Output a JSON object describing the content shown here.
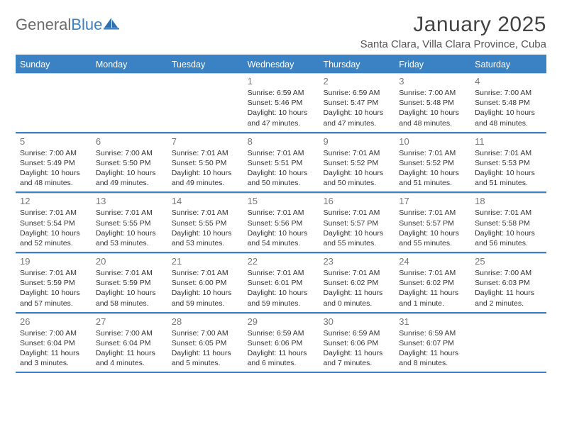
{
  "brand": {
    "text1": "General",
    "text2": "Blue",
    "icon_color": "#2f6fb0"
  },
  "title": "January 2025",
  "subtitle": "Santa Clara, Villa Clara Province, Cuba",
  "colors": {
    "header_bar": "#3b82c4",
    "header_text": "#ffffff",
    "rule": "#3b82c4",
    "cell_border": "#cfcfcf",
    "daynum": "#777777",
    "body_text": "#333333",
    "background": "#ffffff"
  },
  "dow": [
    "Sunday",
    "Monday",
    "Tuesday",
    "Wednesday",
    "Thursday",
    "Friday",
    "Saturday"
  ],
  "weeks": [
    [
      null,
      null,
      null,
      {
        "n": "1",
        "sunrise": "6:59 AM",
        "sunset": "5:46 PM",
        "dl1": "Daylight: 10 hours",
        "dl2": "and 47 minutes."
      },
      {
        "n": "2",
        "sunrise": "6:59 AM",
        "sunset": "5:47 PM",
        "dl1": "Daylight: 10 hours",
        "dl2": "and 47 minutes."
      },
      {
        "n": "3",
        "sunrise": "7:00 AM",
        "sunset": "5:48 PM",
        "dl1": "Daylight: 10 hours",
        "dl2": "and 48 minutes."
      },
      {
        "n": "4",
        "sunrise": "7:00 AM",
        "sunset": "5:48 PM",
        "dl1": "Daylight: 10 hours",
        "dl2": "and 48 minutes."
      }
    ],
    [
      {
        "n": "5",
        "sunrise": "7:00 AM",
        "sunset": "5:49 PM",
        "dl1": "Daylight: 10 hours",
        "dl2": "and 48 minutes."
      },
      {
        "n": "6",
        "sunrise": "7:00 AM",
        "sunset": "5:50 PM",
        "dl1": "Daylight: 10 hours",
        "dl2": "and 49 minutes."
      },
      {
        "n": "7",
        "sunrise": "7:01 AM",
        "sunset": "5:50 PM",
        "dl1": "Daylight: 10 hours",
        "dl2": "and 49 minutes."
      },
      {
        "n": "8",
        "sunrise": "7:01 AM",
        "sunset": "5:51 PM",
        "dl1": "Daylight: 10 hours",
        "dl2": "and 50 minutes."
      },
      {
        "n": "9",
        "sunrise": "7:01 AM",
        "sunset": "5:52 PM",
        "dl1": "Daylight: 10 hours",
        "dl2": "and 50 minutes."
      },
      {
        "n": "10",
        "sunrise": "7:01 AM",
        "sunset": "5:52 PM",
        "dl1": "Daylight: 10 hours",
        "dl2": "and 51 minutes."
      },
      {
        "n": "11",
        "sunrise": "7:01 AM",
        "sunset": "5:53 PM",
        "dl1": "Daylight: 10 hours",
        "dl2": "and 51 minutes."
      }
    ],
    [
      {
        "n": "12",
        "sunrise": "7:01 AM",
        "sunset": "5:54 PM",
        "dl1": "Daylight: 10 hours",
        "dl2": "and 52 minutes."
      },
      {
        "n": "13",
        "sunrise": "7:01 AM",
        "sunset": "5:55 PM",
        "dl1": "Daylight: 10 hours",
        "dl2": "and 53 minutes."
      },
      {
        "n": "14",
        "sunrise": "7:01 AM",
        "sunset": "5:55 PM",
        "dl1": "Daylight: 10 hours",
        "dl2": "and 53 minutes."
      },
      {
        "n": "15",
        "sunrise": "7:01 AM",
        "sunset": "5:56 PM",
        "dl1": "Daylight: 10 hours",
        "dl2": "and 54 minutes."
      },
      {
        "n": "16",
        "sunrise": "7:01 AM",
        "sunset": "5:57 PM",
        "dl1": "Daylight: 10 hours",
        "dl2": "and 55 minutes."
      },
      {
        "n": "17",
        "sunrise": "7:01 AM",
        "sunset": "5:57 PM",
        "dl1": "Daylight: 10 hours",
        "dl2": "and 55 minutes."
      },
      {
        "n": "18",
        "sunrise": "7:01 AM",
        "sunset": "5:58 PM",
        "dl1": "Daylight: 10 hours",
        "dl2": "and 56 minutes."
      }
    ],
    [
      {
        "n": "19",
        "sunrise": "7:01 AM",
        "sunset": "5:59 PM",
        "dl1": "Daylight: 10 hours",
        "dl2": "and 57 minutes."
      },
      {
        "n": "20",
        "sunrise": "7:01 AM",
        "sunset": "5:59 PM",
        "dl1": "Daylight: 10 hours",
        "dl2": "and 58 minutes."
      },
      {
        "n": "21",
        "sunrise": "7:01 AM",
        "sunset": "6:00 PM",
        "dl1": "Daylight: 10 hours",
        "dl2": "and 59 minutes."
      },
      {
        "n": "22",
        "sunrise": "7:01 AM",
        "sunset": "6:01 PM",
        "dl1": "Daylight: 10 hours",
        "dl2": "and 59 minutes."
      },
      {
        "n": "23",
        "sunrise": "7:01 AM",
        "sunset": "6:02 PM",
        "dl1": "Daylight: 11 hours",
        "dl2": "and 0 minutes."
      },
      {
        "n": "24",
        "sunrise": "7:01 AM",
        "sunset": "6:02 PM",
        "dl1": "Daylight: 11 hours",
        "dl2": "and 1 minute."
      },
      {
        "n": "25",
        "sunrise": "7:00 AM",
        "sunset": "6:03 PM",
        "dl1": "Daylight: 11 hours",
        "dl2": "and 2 minutes."
      }
    ],
    [
      {
        "n": "26",
        "sunrise": "7:00 AM",
        "sunset": "6:04 PM",
        "dl1": "Daylight: 11 hours",
        "dl2": "and 3 minutes."
      },
      {
        "n": "27",
        "sunrise": "7:00 AM",
        "sunset": "6:04 PM",
        "dl1": "Daylight: 11 hours",
        "dl2": "and 4 minutes."
      },
      {
        "n": "28",
        "sunrise": "7:00 AM",
        "sunset": "6:05 PM",
        "dl1": "Daylight: 11 hours",
        "dl2": "and 5 minutes."
      },
      {
        "n": "29",
        "sunrise": "6:59 AM",
        "sunset": "6:06 PM",
        "dl1": "Daylight: 11 hours",
        "dl2": "and 6 minutes."
      },
      {
        "n": "30",
        "sunrise": "6:59 AM",
        "sunset": "6:06 PM",
        "dl1": "Daylight: 11 hours",
        "dl2": "and 7 minutes."
      },
      {
        "n": "31",
        "sunrise": "6:59 AM",
        "sunset": "6:07 PM",
        "dl1": "Daylight: 11 hours",
        "dl2": "and 8 minutes."
      },
      null
    ]
  ],
  "labels": {
    "sunrise_prefix": "Sunrise: ",
    "sunset_prefix": "Sunset: "
  }
}
